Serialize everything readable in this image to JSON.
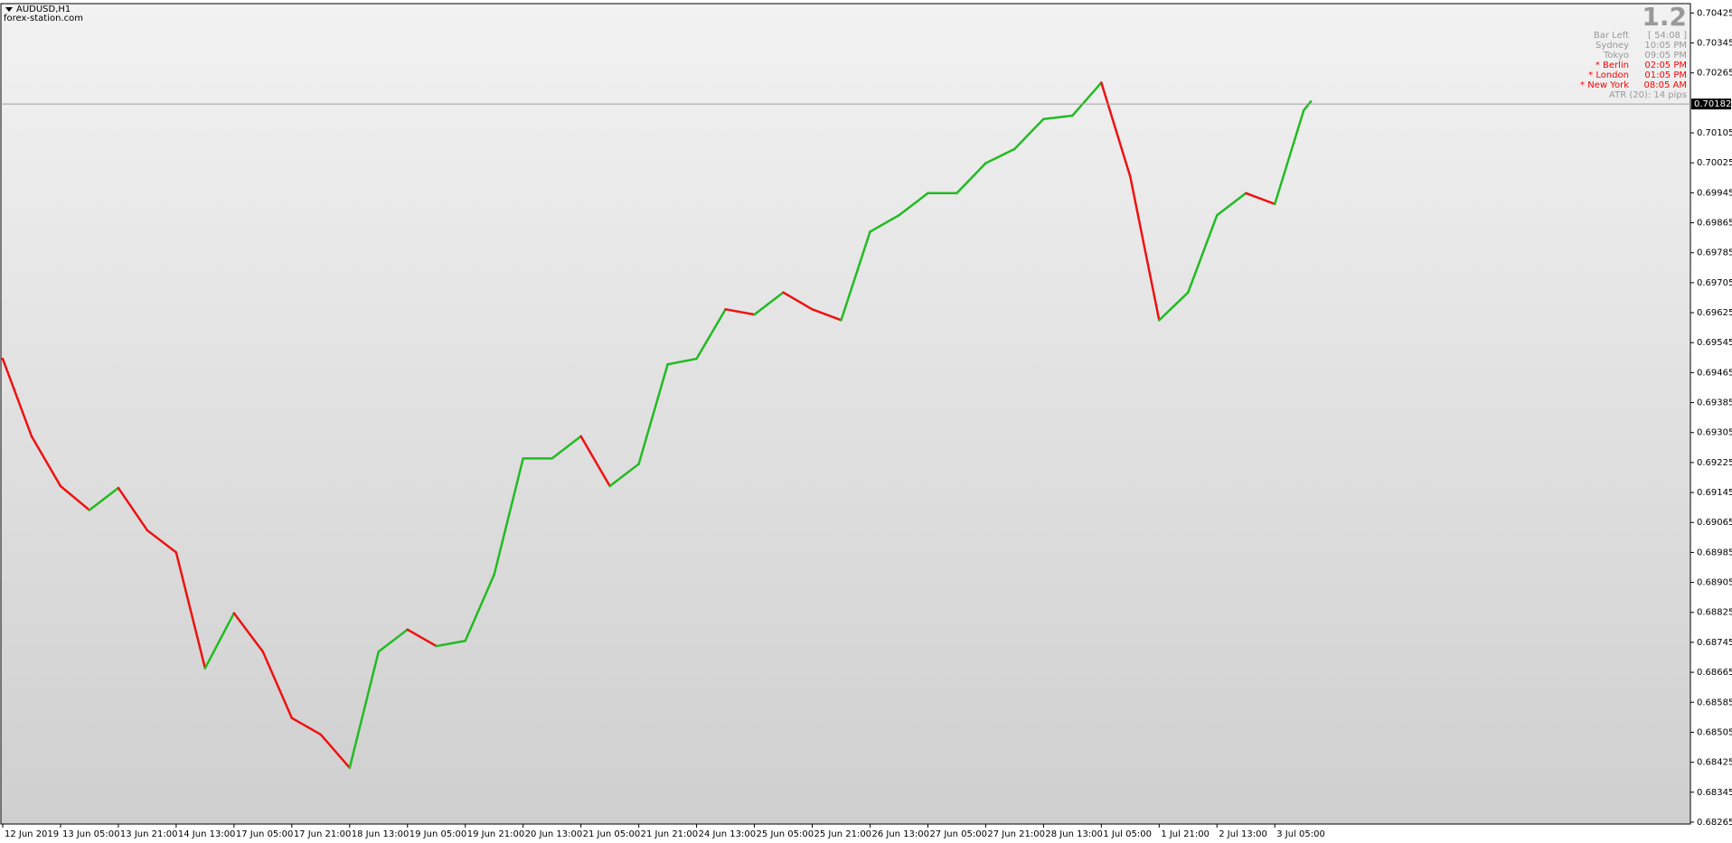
{
  "header": {
    "symbol": "AUDUSD,H1",
    "site": "forex-station.com"
  },
  "panel": {
    "version": "1.2",
    "rows": [
      [
        "Bar Left",
        "[ 54:08 ]"
      ],
      [
        "Sydney",
        "10:05 PM"
      ],
      [
        "Tokyo",
        "09:05 PM"
      ],
      [
        "* Berlin",
        "02:05 PM"
      ],
      [
        "* London",
        "01:05 PM"
      ],
      [
        "* New York",
        "08:05 AM"
      ]
    ],
    "atr": "ATR (20): 14 pips",
    "highlight_from": 3,
    "color": "#999999",
    "highlight_color": "#ff0000"
  },
  "chart_data": {
    "type": "line",
    "x": [
      0,
      8,
      16,
      24,
      32,
      40,
      48,
      56,
      64,
      72,
      80,
      88,
      96,
      104,
      112,
      120,
      128,
      136,
      144,
      152,
      160,
      168,
      176,
      184,
      192,
      200,
      208,
      216,
      224,
      232,
      240,
      248,
      256,
      264,
      272,
      280,
      288,
      296,
      304,
      312,
      320,
      328,
      336,
      344,
      352,
      360,
      362
    ],
    "series": [
      {
        "name": "AUDUSD",
        "up_color": "#22bb22",
        "down_color": "#ee1111",
        "values": [
          0.69502,
          0.69295,
          0.69162,
          0.69098,
          0.69157,
          0.69044,
          0.68985,
          0.68676,
          0.68823,
          0.6872,
          0.68543,
          0.68499,
          0.6841,
          0.6872,
          0.68779,
          0.68735,
          0.68749,
          0.68926,
          0.69236,
          0.69236,
          0.69295,
          0.69162,
          0.69221,
          0.69487,
          0.69502,
          0.69634,
          0.6962,
          0.69679,
          0.69634,
          0.69605,
          0.69841,
          0.69885,
          0.69944,
          0.69944,
          0.70024,
          0.70062,
          0.70142,
          0.70151,
          0.70239,
          0.69988,
          0.69605,
          0.69679,
          0.69885,
          0.69944,
          0.69915,
          0.70165,
          0.70189
        ]
      }
    ],
    "price": 0.70182,
    "xlim": [
      -0.5,
      467
    ],
    "ylim": [
      0.6826,
      0.7045
    ],
    "yticks": [
      0.70425,
      0.70345,
      0.70265,
      0.70105,
      0.70025,
      0.69945,
      0.69865,
      0.69785,
      0.69705,
      0.69625,
      0.69545,
      0.69465,
      0.69385,
      0.69305,
      0.69225,
      0.69145,
      0.69065,
      0.68985,
      0.68905,
      0.68825,
      0.68745,
      0.68665,
      0.68585,
      0.68505,
      0.68425,
      0.68345,
      0.68265
    ],
    "xticks": [
      {
        "value": 0,
        "label": "12 Jun 2019"
      },
      {
        "value": 16,
        "label": "13 Jun 05:00"
      },
      {
        "value": 32,
        "label": "13 Jun 21:00"
      },
      {
        "value": 48,
        "label": "14 Jun 13:00"
      },
      {
        "value": 64,
        "label": "17 Jun 05:00"
      },
      {
        "value": 80,
        "label": "17 Jun 21:00"
      },
      {
        "value": 96,
        "label": "18 Jun 13:00"
      },
      {
        "value": 112,
        "label": "19 Jun 05:00"
      },
      {
        "value": 128,
        "label": "19 Jun 21:00"
      },
      {
        "value": 144,
        "label": "20 Jun 13:00"
      },
      {
        "value": 160,
        "label": "21 Jun 05:00"
      },
      {
        "value": 176,
        "label": "21 Jun 21:00"
      },
      {
        "value": 192,
        "label": "24 Jun 13:00"
      },
      {
        "value": 208,
        "label": "25 Jun 05:00"
      },
      {
        "value": 224,
        "label": "25 Jun 21:00"
      },
      {
        "value": 240,
        "label": "26 Jun 13:00"
      },
      {
        "value": 256,
        "label": "27 Jun 05:00"
      },
      {
        "value": 272,
        "label": "27 Jun 21:00"
      },
      {
        "value": 288,
        "label": "28 Jun 13:00"
      },
      {
        "value": 304,
        "label": "1 Jul 05:00"
      },
      {
        "value": 320,
        "label": "1 Jul 21:00"
      },
      {
        "value": 336,
        "label": "2 Jul 13:00"
      },
      {
        "value": 352,
        "label": "3 Jul 05:00"
      }
    ]
  }
}
